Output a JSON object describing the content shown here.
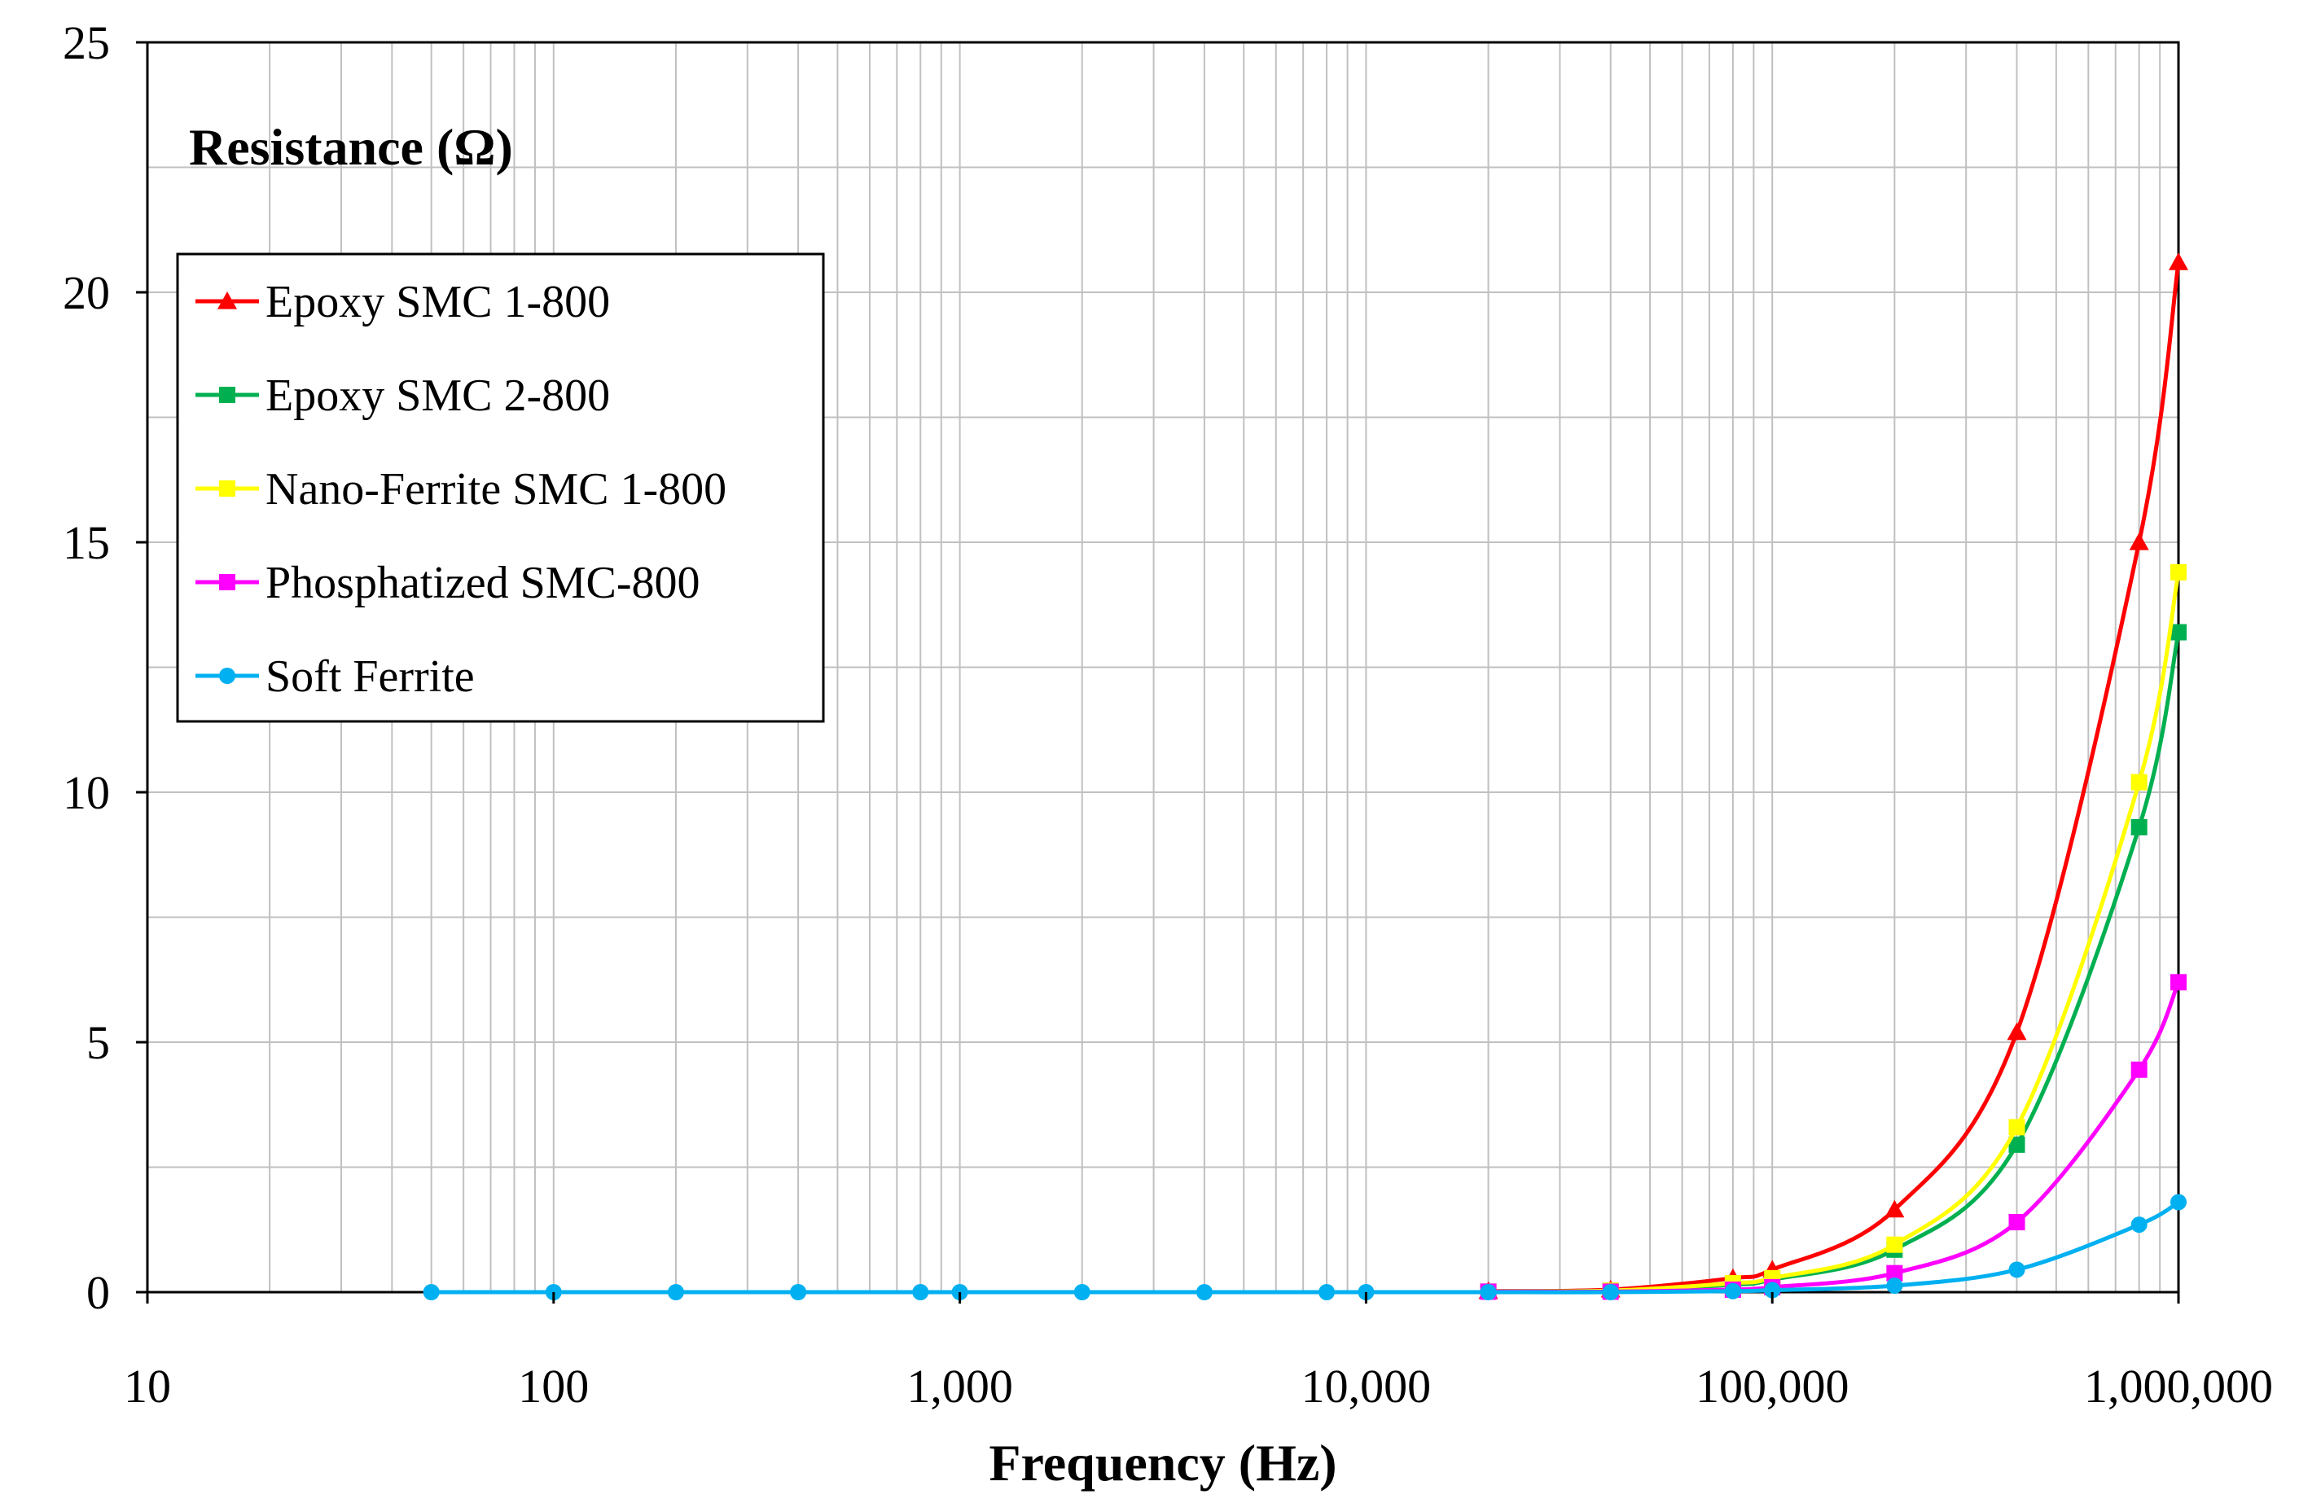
{
  "chart_data": {
    "type": "line",
    "title": "",
    "ylabel": "Resistance  (Ω)",
    "xlabel": "Frequency (Hz)",
    "xscale": "log",
    "xlim": [
      10,
      1000000
    ],
    "ylim": [
      0,
      25
    ],
    "grid": true,
    "legend_position": "top-left",
    "x_ticks": [
      {
        "value": 10,
        "label": "10"
      },
      {
        "value": 100,
        "label": "100"
      },
      {
        "value": 1000,
        "label": "1,000"
      },
      {
        "value": 10000,
        "label": "10,000"
      },
      {
        "value": 100000,
        "label": "100,000"
      },
      {
        "value": 1000000,
        "label": "1,000,000"
      }
    ],
    "y_ticks": [
      {
        "value": 0,
        "label": "0"
      },
      {
        "value": 5,
        "label": "5"
      },
      {
        "value": 10,
        "label": "10"
      },
      {
        "value": 15,
        "label": "15"
      },
      {
        "value": 20,
        "label": "20"
      },
      {
        "value": 25,
        "label": "25"
      }
    ],
    "series": [
      {
        "name": "Epoxy SMC 1-800",
        "color": "#ff0000",
        "marker": "triangle",
        "x": [
          20000,
          40000,
          80000,
          100000,
          200000,
          400000,
          800000,
          1000000
        ],
        "values": [
          0.02,
          0.05,
          0.28,
          0.45,
          1.65,
          5.2,
          15.0,
          20.6
        ]
      },
      {
        "name": "Epoxy SMC 2-800",
        "color": "#00b050",
        "marker": "square",
        "x": [
          20000,
          40000,
          80000,
          100000,
          200000,
          400000,
          800000,
          1000000
        ],
        "values": [
          0.01,
          0.03,
          0.15,
          0.25,
          0.85,
          2.95,
          9.3,
          13.2
        ]
      },
      {
        "name": "Nano-Ferrite SMC 1-800",
        "color": "#ffff00",
        "marker": "square",
        "x": [
          20000,
          40000,
          80000,
          100000,
          200000,
          400000,
          800000,
          1000000
        ],
        "values": [
          0.01,
          0.03,
          0.18,
          0.28,
          0.95,
          3.3,
          10.2,
          14.4
        ]
      },
      {
        "name": "Phosphatized SMC-800",
        "color": "#ff00ff",
        "marker": "square",
        "x": [
          20000,
          40000,
          80000,
          100000,
          200000,
          400000,
          800000,
          1000000
        ],
        "values": [
          0.01,
          0.01,
          0.05,
          0.1,
          0.38,
          1.4,
          4.45,
          6.2
        ]
      },
      {
        "name": "Soft Ferrite",
        "color": "#00b0f0",
        "marker": "circle",
        "x": [
          50,
          100,
          200,
          400,
          800,
          1000,
          2000,
          4000,
          8000,
          10000,
          20000,
          40000,
          80000,
          100000,
          200000,
          400000,
          800000,
          1000000
        ],
        "values": [
          0,
          0,
          0,
          0,
          0,
          0,
          0,
          0,
          0,
          0,
          0,
          0,
          0.02,
          0.04,
          0.13,
          0.45,
          1.35,
          1.8
        ]
      }
    ]
  }
}
